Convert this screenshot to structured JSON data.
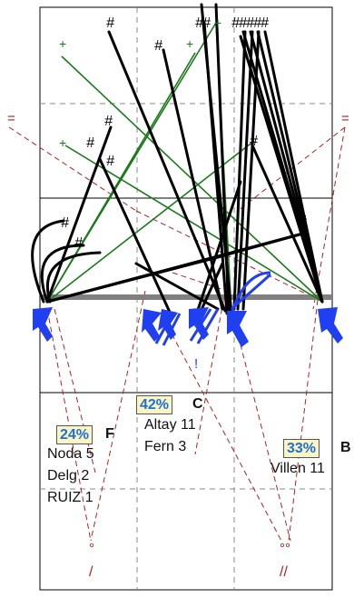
{
  "zones": [
    {
      "id": "F",
      "pct": "24%",
      "players": [
        "Noda 5",
        "Delg  2",
        "RUIZ 1"
      ]
    },
    {
      "id": "C",
      "pct": "42%",
      "players": [
        "Altay 11",
        "Fern  3"
      ]
    },
    {
      "id": "B",
      "pct": "33%",
      "players": [
        "Villen 11"
      ]
    }
  ],
  "symbols": {
    "attack_mark": "#",
    "plus_mark": "+",
    "exclaim_mark": "!",
    "bracket_mark": "=",
    "slash_single": "/",
    "slash_double": "//",
    "point_single": "°",
    "point_double": "°°"
  },
  "colors": {
    "attack": "#000000",
    "plus": "#1a7a1a",
    "reception": "#1f3ff0",
    "dashed": "#b22222",
    "net": "#808080",
    "pct_bg": "#fbf5c3",
    "pct_text": "#1e6fd9"
  }
}
